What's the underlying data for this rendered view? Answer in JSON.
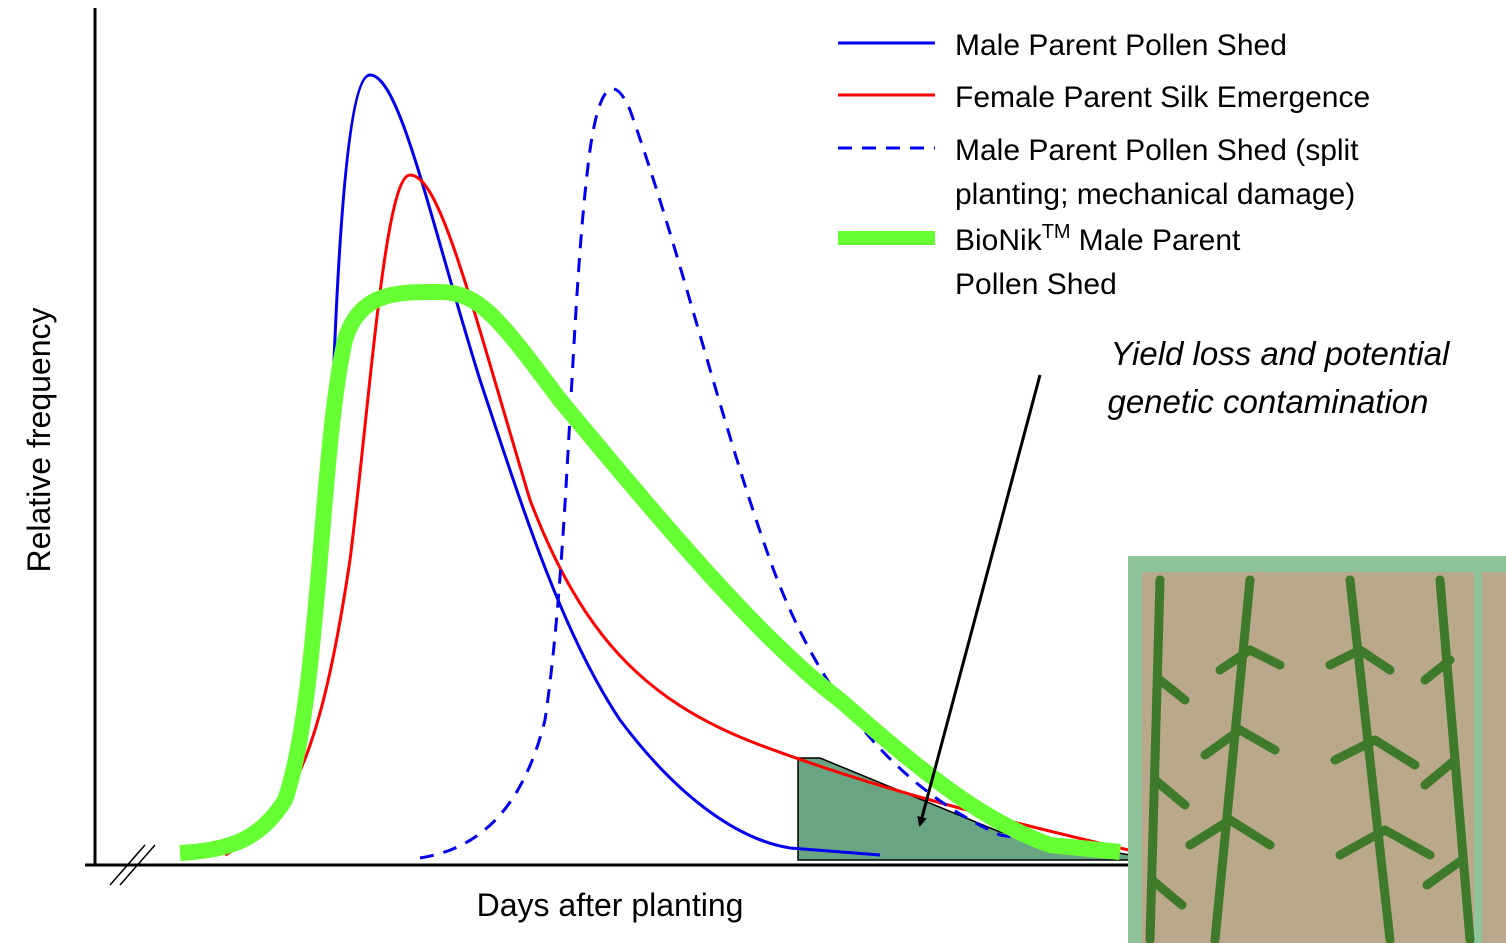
{
  "axes": {
    "y_label": "Relative frequency",
    "x_label": "Days after planting"
  },
  "legend": [
    {
      "lines": [
        "Male Parent Pollen Shed"
      ]
    },
    {
      "lines": [
        "Female Parent Silk Emergence"
      ]
    },
    {
      "lines": [
        "Male Parent Pollen Shed (split",
        "planting; mechanical damage)"
      ]
    },
    {
      "name": "BioNik",
      "superscript": "TM",
      "lines": [
        "Male Parent",
        "Pollen Shed"
      ]
    }
  ],
  "annotation": {
    "lines": [
      "Yield loss and potential",
      "genetic contamination"
    ]
  }
}
